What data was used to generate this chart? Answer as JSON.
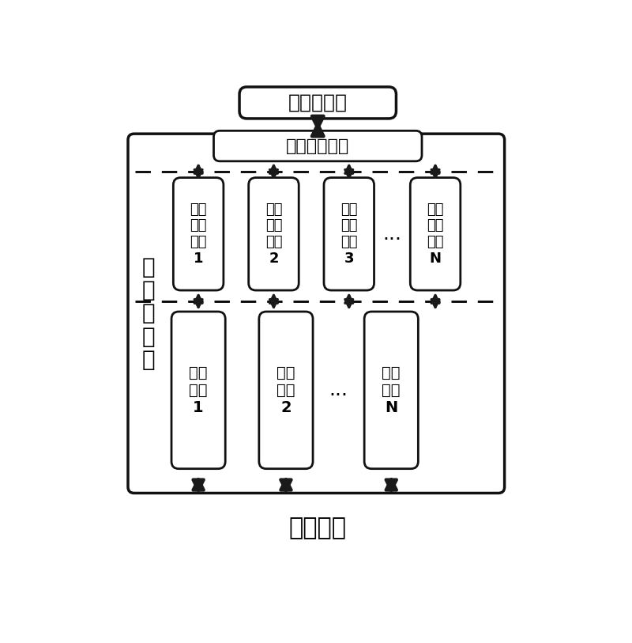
{
  "title_top": "业务服务器",
  "title_bottom": "数据通信",
  "label_left_chars": [
    "前",
    "端",
    "服",
    "务",
    "器"
  ],
  "data_proc_label": "数据处理模块",
  "dev_module_lines": [
    [
      "设备",
      "接口",
      "模块",
      "1"
    ],
    [
      "设备",
      "接口",
      "模块",
      "2"
    ],
    [
      "设备",
      "接口",
      "模块",
      "3"
    ],
    [
      "设备",
      "接口",
      "模块",
      "N"
    ]
  ],
  "comm_module_lines": [
    [
      "通信",
      "模块",
      "1"
    ],
    [
      "通信",
      "模块",
      "2"
    ],
    [
      "通信",
      "模块",
      "N"
    ]
  ],
  "ellipsis": "...",
  "arrow_color": "#1a1a1a",
  "box_edge_color": "#111111",
  "outer_box_color": "#111111"
}
